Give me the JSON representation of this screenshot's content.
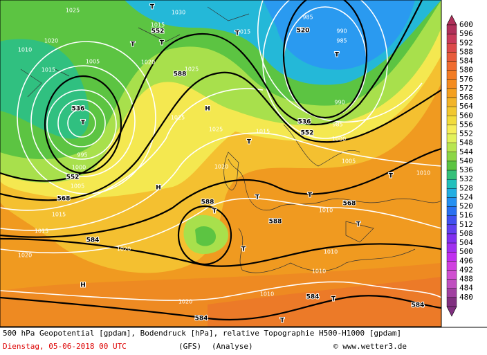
{
  "map_labels": [
    "552",
    "588",
    "536",
    "T",
    "552",
    "568",
    "584",
    "H",
    "H",
    "H",
    "588",
    "T",
    "536",
    "552",
    "520",
    "T",
    "T",
    "T",
    "T",
    "T",
    "568",
    "588",
    "584",
    "T",
    "584",
    "584",
    "T",
    "T",
    "T",
    "T",
    "T",
    "T",
    "T"
  ],
  "pressure_labels": [
    "1010",
    "1020",
    "1015",
    "1005",
    "1020",
    "1025",
    "1025",
    "1025",
    "1020",
    "1015",
    "1005",
    "1010",
    "1010",
    "1010",
    "1010",
    "1010",
    "1020",
    "1020",
    "1020",
    "1015",
    "1015",
    "1005",
    "1000",
    "995",
    "990",
    "985",
    "1000",
    "985",
    "990",
    "985",
    "1030",
    "1025",
    "1015",
    "1015"
  ],
  "colorbar": {
    "levels": [
      "600",
      "596",
      "592",
      "588",
      "584",
      "580",
      "576",
      "572",
      "568",
      "564",
      "560",
      "556",
      "552",
      "548",
      "544",
      "540",
      "536",
      "532",
      "528",
      "524",
      "520",
      "516",
      "512",
      "508",
      "504",
      "500",
      "496",
      "492",
      "488",
      "484",
      "480"
    ],
    "colors": [
      "#b0305a",
      "#c83a5a",
      "#dc4a4a",
      "#e85c3c",
      "#f06c30",
      "#f27c24",
      "#f48c20",
      "#f4a020",
      "#f2b428",
      "#f2c830",
      "#f2dc3c",
      "#f6ee5a",
      "#e2f25c",
      "#b8e650",
      "#8cd646",
      "#5cc442",
      "#34c07a",
      "#22c0bc",
      "#22aee2",
      "#2490f2",
      "#2870f2",
      "#4050f0",
      "#6040f0",
      "#8030f0",
      "#a030f0",
      "#c030f0",
      "#d040e0",
      "#d050d0",
      "#c050c0",
      "#a040a0",
      "#803080"
    ]
  },
  "footer": {
    "line1": "500 hPa Geopotential [gpdam], Bodendruck [hPa], relative Topographie H500-H1000 [gpdam]",
    "date": "Dienstag, 05-06-2018  00 UTC",
    "model": "(GFS)",
    "mode": "(Analyse)",
    "credit": "© www.wetter3.de"
  }
}
